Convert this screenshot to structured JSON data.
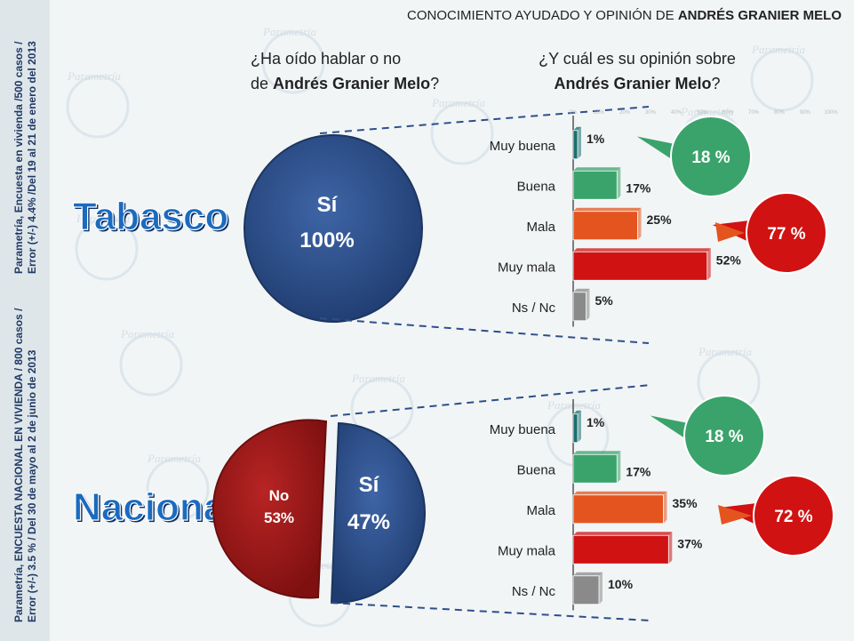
{
  "header": {
    "title_prefix": "CONOCIMIENTO AYUDADO Y OPINIÓN DE ",
    "title_name": "ANDRÉS GRANIER MELO"
  },
  "question_left": {
    "line1": "¿Ha oído hablar o no",
    "line2_prefix": "de ",
    "line2_name": "Andrés Granier Melo",
    "line2_suffix": "?"
  },
  "question_right": {
    "line1": "¿Y cuál es su opinión sobre",
    "line2_name": "Andrés Granier Melo",
    "line2_suffix": "?"
  },
  "source_tabasco": {
    "line1": "Parametría, Encuesta en vivienda /500 casos /",
    "line2": "Error (+/-) 4.4% /Del 19 al 21 de enero del 2013"
  },
  "source_nacional": {
    "line1": "Parametría, ENCUESTA NACIONAL EN VIVIENDA / 800 casos /",
    "line2": "Error (+/-) 3.5 % / Del 30 de mayo al 2  de junio de 2013"
  },
  "watermark": "Parametría",
  "colors": {
    "si": "#2d4f8a",
    "no": "#a01b1b",
    "muy_buena": "#1a6e6e",
    "buena": "#3aa36b",
    "mala": "#e4541f",
    "muy_mala": "#d01212",
    "ns": "#8a8a8a",
    "region_label": "#1a6bbf"
  },
  "chart_data": [
    {
      "type": "pie",
      "region": "Tabasco",
      "slices": [
        {
          "label": "Sí",
          "value": 100
        }
      ],
      "labels_text": {
        "si_label": "Sí",
        "si_value": "100%"
      }
    },
    {
      "type": "bar",
      "region": "Tabasco",
      "categories": [
        "Muy buena",
        "Buena",
        "Mala",
        "Muy mala",
        "Ns / Nc"
      ],
      "values": [
        1,
        17,
        25,
        52,
        5
      ],
      "value_labels": [
        "1%",
        "17%",
        "25%",
        "52%",
        "5%"
      ],
      "xlim": [
        0,
        100
      ],
      "ticks": [
        "0%",
        "10%",
        "20%",
        "30%",
        "40%",
        "50%",
        "60%",
        "70%",
        "80%",
        "90%",
        "100%"
      ],
      "bubbles": {
        "positive": "18 %",
        "negative": "77 %"
      }
    },
    {
      "type": "pie",
      "region": "Nacional",
      "slices": [
        {
          "label": "No",
          "value": 53
        },
        {
          "label": "Sí",
          "value": 47
        }
      ],
      "labels_text": {
        "no_label": "No",
        "no_value": "53%",
        "si_label": "Sí",
        "si_value": "47%"
      }
    },
    {
      "type": "bar",
      "region": "Nacional",
      "categories": [
        "Muy buena",
        "Buena",
        "Mala",
        "Muy mala",
        "Ns / Nc"
      ],
      "values": [
        1,
        17,
        35,
        37,
        10
      ],
      "value_labels": [
        "1%",
        "17%",
        "35%",
        "37%",
        "10%"
      ],
      "xlim": [
        0,
        100
      ],
      "bubbles": {
        "positive": "18 %",
        "negative": "72 %"
      }
    }
  ]
}
